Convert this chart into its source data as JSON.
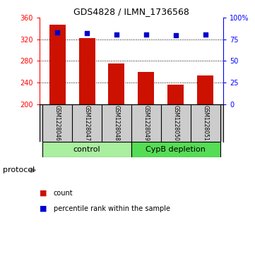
{
  "title": "GDS4828 / ILMN_1736568",
  "samples": [
    "GSM1228046",
    "GSM1228047",
    "GSM1228048",
    "GSM1228049",
    "GSM1228050",
    "GSM1228051"
  ],
  "counts": [
    348,
    323,
    275,
    260,
    236,
    253
  ],
  "percentiles": [
    83,
    82,
    81,
    81,
    80,
    81
  ],
  "ylim_left": [
    200,
    360
  ],
  "yticks_left": [
    200,
    240,
    280,
    320,
    360
  ],
  "ylim_right": [
    0,
    100
  ],
  "yticks_right": [
    0,
    25,
    50,
    75,
    100
  ],
  "bar_color": "#cc1100",
  "dot_color": "#0000cc",
  "bar_width": 0.55,
  "bg_plot": "#ffffff",
  "bg_sample_box": "#cccccc",
  "bg_control": "#aaeea0",
  "bg_cypb": "#55dd55",
  "label_count": "count",
  "label_pct": "percentile rank within the sample",
  "protocol_label": "protocol",
  "group_names": [
    "control",
    "CypB depletion"
  ]
}
